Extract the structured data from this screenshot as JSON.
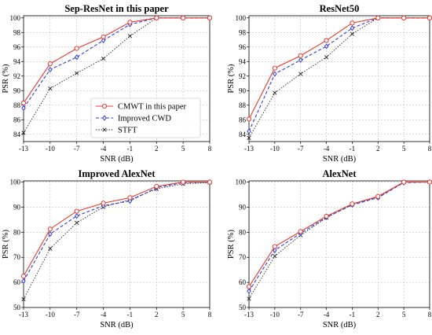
{
  "colors": {
    "cmwt": "#e8392c",
    "cwd": "#2f3fd6",
    "stft": "#222222",
    "grid": "#bdbdbd"
  },
  "legend": {
    "entries": [
      "CMWT in this paper",
      "Improved CWD",
      "STFT"
    ]
  },
  "chart_data": [
    {
      "type": "line",
      "title": "Sep-ResNet in this paper",
      "xlabel": "SNR (dB)",
      "ylabel": "PSR (%)",
      "x": [
        -13,
        -10,
        -7,
        -4,
        -1,
        2,
        5,
        8
      ],
      "xticks": [
        "-13",
        "-10",
        "-7",
        "-4",
        "-1",
        "2",
        "5",
        "8"
      ],
      "ylim": [
        83,
        100.3
      ],
      "yticks": [
        84,
        86,
        88,
        90,
        92,
        94,
        96,
        98,
        100
      ],
      "grid": true,
      "legend": "center",
      "series": [
        {
          "name": "CMWT in this paper",
          "values": [
            88.3,
            93.7,
            95.8,
            97.4,
            99.4,
            100,
            100,
            100
          ]
        },
        {
          "name": "Improved CWD",
          "values": [
            87.6,
            92.9,
            94.6,
            96.9,
            99.1,
            100,
            100,
            100
          ]
        },
        {
          "name": "STFT",
          "values": [
            84.2,
            90.3,
            92.4,
            94.4,
            97.5,
            100,
            100,
            100
          ]
        }
      ]
    },
    {
      "type": "line",
      "title": "ResNet50",
      "xlabel": "SNR (dB)",
      "ylabel": "PSR (%)",
      "x": [
        -13,
        -10,
        -7,
        -4,
        -1,
        2,
        5,
        8
      ],
      "xticks": [
        "-13",
        "-10",
        "-7",
        "-4",
        "-1",
        "2",
        "5",
        "8"
      ],
      "ylim": [
        83,
        100.3
      ],
      "yticks": [
        84,
        86,
        88,
        90,
        92,
        94,
        96,
        98,
        100
      ],
      "grid": true,
      "series": [
        {
          "name": "CMWT in this paper",
          "values": [
            86.1,
            93.1,
            94.8,
            96.9,
            99.3,
            100,
            100,
            100
          ]
        },
        {
          "name": "Improved CWD",
          "values": [
            84.4,
            92.3,
            94.2,
            96.1,
            98.6,
            100,
            100,
            100
          ]
        },
        {
          "name": "STFT",
          "values": [
            83.5,
            89.7,
            92.3,
            94.6,
            97.8,
            100,
            100,
            100
          ]
        }
      ]
    },
    {
      "type": "line",
      "title": "Improved AlexNet",
      "xlabel": "SNR (dB)",
      "ylabel": "PSR (%)",
      "x": [
        -13,
        -10,
        -7,
        -4,
        -1,
        2,
        5,
        8
      ],
      "xticks": [
        "-13",
        "-10",
        "-7",
        "-4",
        "-1",
        "2",
        "5",
        "8"
      ],
      "ylim": [
        50,
        100.5
      ],
      "yticks": [
        50,
        60,
        70,
        80,
        90,
        100
      ],
      "grid": true,
      "series": [
        {
          "name": "CMWT in this paper",
          "values": [
            62.5,
            81.3,
            88.4,
            91.6,
            93.8,
            98.3,
            100,
            100
          ]
        },
        {
          "name": "Improved CWD",
          "values": [
            60.5,
            79.3,
            86.5,
            90.6,
            92.5,
            97.8,
            99.8,
            100
          ]
        },
        {
          "name": "STFT",
          "values": [
            53.3,
            73.5,
            83.8,
            90.1,
            93.0,
            97.3,
            99.3,
            99.8
          ]
        }
      ]
    },
    {
      "type": "line",
      "title": "AlexNet",
      "xlabel": "SNR (dB)",
      "ylabel": "PSR (%)",
      "x": [
        -13,
        -10,
        -7,
        -4,
        -1,
        2,
        5,
        8
      ],
      "xticks": [
        "-13",
        "-10",
        "-7",
        "-4",
        "-1",
        "2",
        "5",
        "8"
      ],
      "ylim": [
        50,
        100.5
      ],
      "yticks": [
        50,
        60,
        70,
        80,
        90,
        100
      ],
      "grid": true,
      "series": [
        {
          "name": "CMWT in this paper",
          "values": [
            58.3,
            74.3,
            80.3,
            86.4,
            91.3,
            94.3,
            100,
            100
          ]
        },
        {
          "name": "Improved CWD",
          "values": [
            56.5,
            72.8,
            79.6,
            86.0,
            90.9,
            93.8,
            99.8,
            100
          ]
        },
        {
          "name": "STFT",
          "values": [
            53.5,
            70.5,
            78.8,
            85.8,
            91.1,
            94.0,
            100,
            100
          ]
        }
      ]
    }
  ]
}
